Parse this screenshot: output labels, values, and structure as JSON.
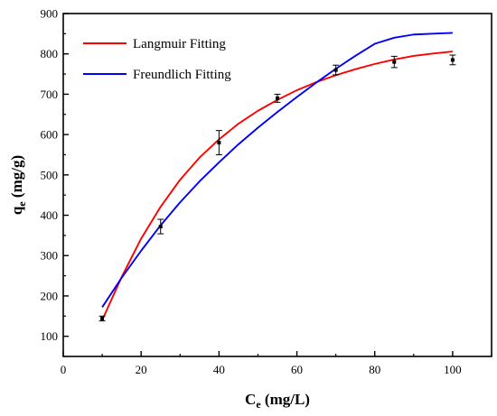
{
  "chart_data": {
    "type": "scatter",
    "xlabel": {
      "main": "C",
      "sub": "e",
      "unit": " (mg/L)"
    },
    "ylabel": {
      "main": "q",
      "sub": "e",
      "unit": " (mg/g)"
    },
    "xlim": [
      0,
      110
    ],
    "ylim": [
      50,
      900
    ],
    "xticks": [
      0,
      20,
      40,
      60,
      80,
      100
    ],
    "yticks": [
      100,
      200,
      300,
      400,
      500,
      600,
      700,
      800,
      900
    ],
    "grid": false,
    "legend_position": "top-left",
    "experimental": {
      "x": [
        10,
        25,
        40,
        55,
        70,
        85,
        100
      ],
      "y": [
        144,
        372,
        580,
        690,
        760,
        780,
        785
      ],
      "error": [
        6,
        18,
        30,
        10,
        12,
        14,
        12
      ],
      "color": "#000000"
    },
    "series": [
      {
        "name": "Langmuir Fitting",
        "color": "#ff0000",
        "x": [
          10,
          15,
          20,
          25,
          30,
          35,
          40,
          45,
          50,
          55,
          60,
          65,
          70,
          75,
          80,
          85,
          90,
          95,
          100
        ],
        "y": [
          140,
          247,
          342,
          421,
          488,
          543,
          588,
          627,
          659,
          686,
          710,
          730,
          747,
          762,
          775,
          786,
          795,
          801,
          806
        ]
      },
      {
        "name": "Freundlich Fitting",
        "color": "#0000ff",
        "x": [
          10,
          15,
          20,
          25,
          30,
          35,
          40,
          45,
          50,
          55,
          60,
          65,
          70,
          75,
          80,
          85,
          90,
          95,
          100
        ],
        "y": [
          172,
          245,
          312,
          375,
          432,
          484,
          531,
          576,
          617,
          656,
          693,
          729,
          763,
          795,
          825,
          840,
          848,
          850,
          852
        ]
      }
    ]
  }
}
